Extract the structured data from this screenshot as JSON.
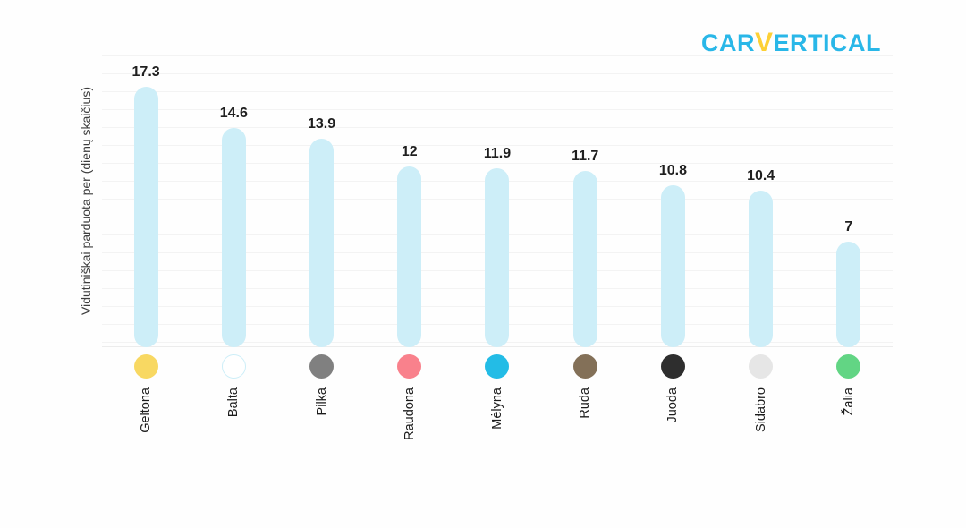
{
  "logo": {
    "part1": "CAR",
    "v": "V",
    "part2": "ERTICAL",
    "color_main": "#29b7e8",
    "color_v": "#fdd035"
  },
  "chart_data": {
    "type": "bar",
    "title": "",
    "xlabel": "",
    "ylabel": "Vidutiniškai parduota per (dienų skaičius)",
    "categories": [
      "Geltona",
      "Balta",
      "Pilka",
      "Raudona",
      "Mėlyna",
      "Ruda",
      "Juoda",
      "Sidabro",
      "Žalia"
    ],
    "values": [
      17.3,
      14.6,
      13.9,
      12,
      11.9,
      11.7,
      10.8,
      10.4,
      7
    ],
    "value_labels": [
      "17.3",
      "14.6",
      "13.9",
      "12",
      "11.9",
      "11.7",
      "10.8",
      "10.4",
      "7"
    ],
    "ylim": [
      0,
      18
    ],
    "grid": true,
    "legend": false,
    "bar_color": "#cdeef8",
    "marker_colors": [
      "#f8d862",
      "#ffffff",
      "#808080",
      "#f9818c",
      "#23bce6",
      "#837058",
      "#2e2e2e",
      "#e6e6e6",
      "#62d584"
    ],
    "marker_border_colors": [
      null,
      "#cdeef8",
      null,
      null,
      null,
      null,
      null,
      null,
      null
    ]
  }
}
